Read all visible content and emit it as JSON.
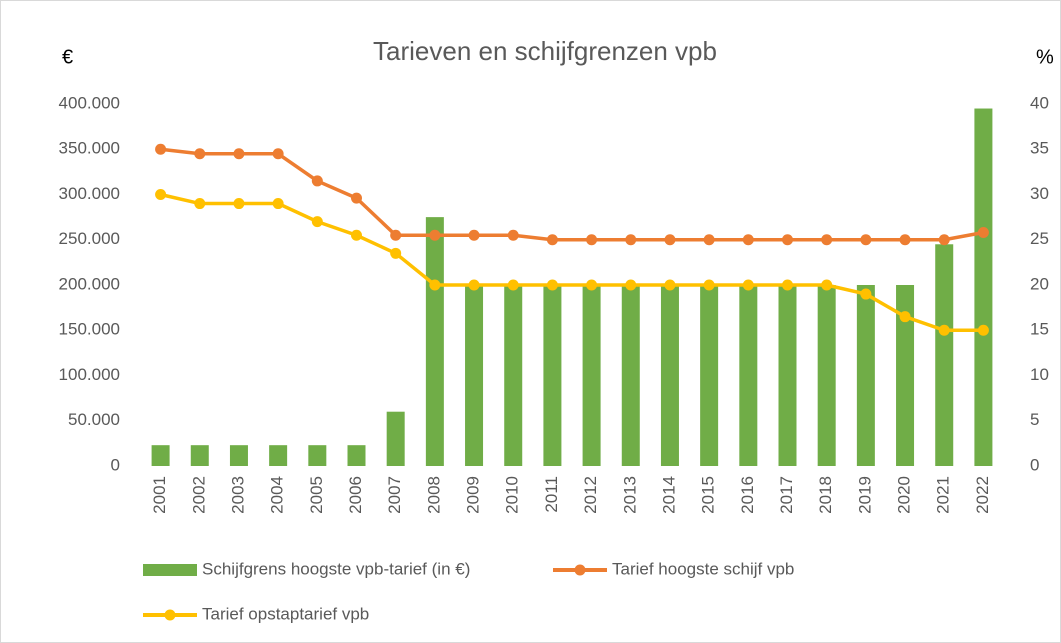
{
  "chart_data": {
    "type": "bar_line",
    "title": "Tarieven en schijfgrenzen vpb",
    "y_label": "€",
    "y2_label": "%",
    "categories": [
      "2001",
      "2002",
      "2003",
      "2004",
      "2005",
      "2006",
      "2007",
      "2008",
      "2009",
      "2010",
      "2011",
      "2012",
      "2013",
      "2014",
      "2015",
      "2016",
      "2017",
      "2018",
      "2019",
      "2020",
      "2021",
      "2022"
    ],
    "series": [
      {
        "name": "Schijfgrens hoogste vpb-tarief (in €)",
        "type": "bar",
        "color": "#70ad47",
        "values": [
          23000,
          23000,
          23000,
          23000,
          23000,
          23000,
          60000,
          275000,
          200000,
          200000,
          200000,
          200000,
          200000,
          200000,
          200000,
          200000,
          200000,
          200000,
          200000,
          200000,
          245000,
          395000
        ]
      },
      {
        "name": "Tarief hoogste schijf vpb",
        "type": "line",
        "axis": "y2",
        "color": "#ed7d31",
        "values": [
          35,
          34.5,
          34.5,
          34.5,
          31.5,
          29.6,
          25.5,
          25.5,
          25.5,
          25.5,
          25,
          25,
          25,
          25,
          25,
          25,
          25,
          25,
          25,
          25,
          25,
          25.8
        ]
      },
      {
        "name": "Tarief opstaptarief vpb",
        "type": "line",
        "axis": "y2",
        "color": "#ffc000",
        "values": [
          30,
          29,
          29,
          29,
          27,
          25.5,
          23.5,
          20,
          20,
          20,
          20,
          20,
          20,
          20,
          20,
          20,
          20,
          20,
          19,
          16.5,
          15,
          15
        ]
      }
    ],
    "ylim": [
      0,
      400000
    ],
    "yticks": [
      0,
      {
        "value": 50000,
        "label": "50.000"
      },
      {
        "value": 100000,
        "label": "100.000"
      },
      {
        "value": 150000,
        "label": "150.000"
      },
      {
        "value": 200000,
        "label": "200.000"
      },
      {
        "value": 250000,
        "label": "250.000"
      },
      {
        "value": 300000,
        "label": "300.000"
      },
      {
        "value": 350000,
        "label": "350.000"
      },
      {
        "value": 400000,
        "label": "400.000"
      }
    ],
    "y2lim": [
      0,
      40
    ],
    "y2ticks": [
      0,
      5,
      10,
      15,
      20,
      25,
      30,
      35,
      40
    ]
  }
}
